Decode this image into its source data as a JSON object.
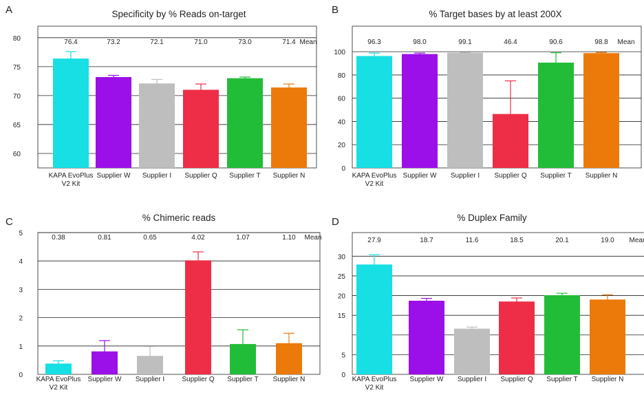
{
  "colors": [
    "#17dfe3",
    "#9b0fe8",
    "#bebebe",
    "#ee2d47",
    "#22bd38",
    "#ec7a0a"
  ],
  "chart_data": [
    {
      "id": "A",
      "type": "bar",
      "title": "Specificity by % Reads on-target",
      "categories": [
        "KAPA EvoPlus\nV2 Kit",
        "Supplier W",
        "Supplier I",
        "Supplier Q",
        "Supplier T",
        "Supplier N"
      ],
      "values": [
        76.4,
        73.2,
        72.1,
        71.0,
        73.0,
        71.4
      ],
      "errors": [
        1.2,
        0.3,
        0.7,
        1.0,
        0.2,
        0.6
      ],
      "mean_labels": [
        "76.4",
        "73.2",
        "72.1",
        "71.0",
        "73.0",
        "71.4"
      ],
      "mean_word": "Mean",
      "ylim": [
        57.5,
        82
      ],
      "yticks": [
        60,
        65,
        70,
        75,
        80
      ],
      "ytick_labels": [
        "60",
        "65",
        "70",
        "75",
        "80"
      ]
    },
    {
      "id": "B",
      "type": "bar",
      "title": "% Target bases by at least 200X",
      "categories": [
        "KAPA EvoPlus\nV2 Kit",
        "Supplier W",
        "Supplier I",
        "Supplier Q",
        "Supplier T",
        "Supplier N"
      ],
      "values": [
        96.3,
        98.0,
        99.1,
        46.4,
        90.6,
        98.8
      ],
      "errors": [
        2.5,
        0.8,
        0.4,
        28.5,
        8.5,
        0.6
      ],
      "mean_labels": [
        "96.3",
        "98.0",
        "99.1",
        "46.4",
        "90.6",
        "98.8"
      ],
      "mean_word": "Mean",
      "ylim": [
        0,
        122
      ],
      "yticks": [
        0,
        20,
        40,
        60,
        80,
        100
      ],
      "ytick_labels": [
        "0",
        "20",
        "40",
        "60",
        "80",
        "100"
      ]
    },
    {
      "id": "C",
      "type": "bar",
      "title": "% Chimeric reads",
      "categories": [
        "KAPA EvoPlus\nV2 Kit",
        "Supplier W",
        "Supplier I",
        "Supplier Q",
        "Supplier T",
        "Supplier N"
      ],
      "values": [
        0.38,
        0.81,
        0.65,
        4.02,
        1.07,
        1.1
      ],
      "errors": [
        0.1,
        0.38,
        0.33,
        0.3,
        0.5,
        0.35
      ],
      "mean_labels": [
        "0.38",
        "0.81",
        "0.65",
        "4.02",
        "1.07",
        "1.10"
      ],
      "mean_word": "Mean",
      "ylim": [
        0,
        5
      ],
      "yticks": [
        0,
        1,
        2,
        3,
        4,
        5
      ],
      "ytick_labels": [
        "0",
        "1",
        "2",
        "3",
        "4",
        "5"
      ]
    },
    {
      "id": "D",
      "type": "bar",
      "title": "% Duplex Family",
      "categories": [
        "KAPA EvoPlus\nV2 Kit",
        "Supplier W",
        "Supplier I",
        "Supplier Q",
        "Supplier T",
        "Supplier N"
      ],
      "values": [
        27.9,
        18.7,
        11.6,
        18.5,
        20.1,
        19.0
      ],
      "errors": [
        2.5,
        0.6,
        0.4,
        0.9,
        0.5,
        1.2
      ],
      "mean_labels": [
        "27.9",
        "18.7",
        "11.6",
        "18.5",
        "20.1",
        "19.0"
      ],
      "mean_word": "Mean",
      "ylim": [
        0,
        36
      ],
      "yticks": [
        0,
        5,
        10,
        15,
        20,
        25,
        30
      ],
      "ytick_labels": [
        "0",
        "5",
        "",
        "15",
        "20",
        "25",
        "30"
      ]
    }
  ]
}
